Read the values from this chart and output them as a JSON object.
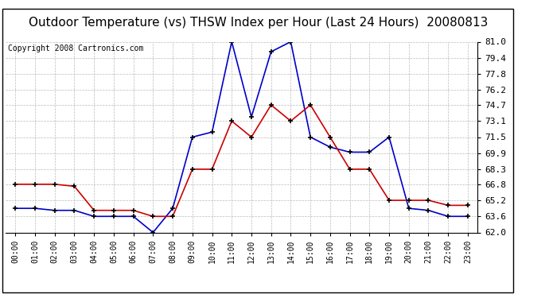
{
  "title": "Outdoor Temperature (vs) THSW Index per Hour (Last 24 Hours)  20080813",
  "copyright": "Copyright 2008 Cartronics.com",
  "hours": [
    "00:00",
    "01:00",
    "02:00",
    "03:00",
    "04:00",
    "05:00",
    "06:00",
    "07:00",
    "08:00",
    "09:00",
    "10:00",
    "11:00",
    "12:00",
    "13:00",
    "14:00",
    "15:00",
    "16:00",
    "17:00",
    "18:00",
    "19:00",
    "20:00",
    "21:00",
    "22:00",
    "23:00"
  ],
  "temp": [
    66.8,
    66.8,
    66.8,
    66.6,
    64.2,
    64.2,
    64.2,
    63.6,
    63.6,
    68.3,
    68.3,
    73.1,
    71.5,
    74.7,
    73.1,
    74.7,
    71.5,
    68.3,
    68.3,
    65.2,
    65.2,
    65.2,
    64.7,
    64.7
  ],
  "thsw": [
    64.4,
    64.4,
    64.2,
    64.2,
    63.6,
    63.6,
    63.6,
    62.0,
    64.4,
    71.5,
    72.0,
    81.0,
    73.5,
    80.0,
    81.0,
    71.5,
    70.5,
    70.0,
    70.0,
    71.5,
    64.4,
    64.2,
    63.6,
    63.6
  ],
  "ylim": [
    62.0,
    81.0
  ],
  "yticks": [
    62.0,
    63.6,
    65.2,
    66.8,
    68.3,
    69.9,
    71.5,
    73.1,
    74.7,
    76.2,
    77.8,
    79.4,
    81.0
  ],
  "temp_color": "#cc0000",
  "thsw_color": "#0000cc",
  "bg_color": "#ffffff",
  "grid_color": "#aaaaaa",
  "title_fontsize": 11,
  "copyright_fontsize": 7,
  "tick_fontsize": 7,
  "ytick_fontsize": 8
}
